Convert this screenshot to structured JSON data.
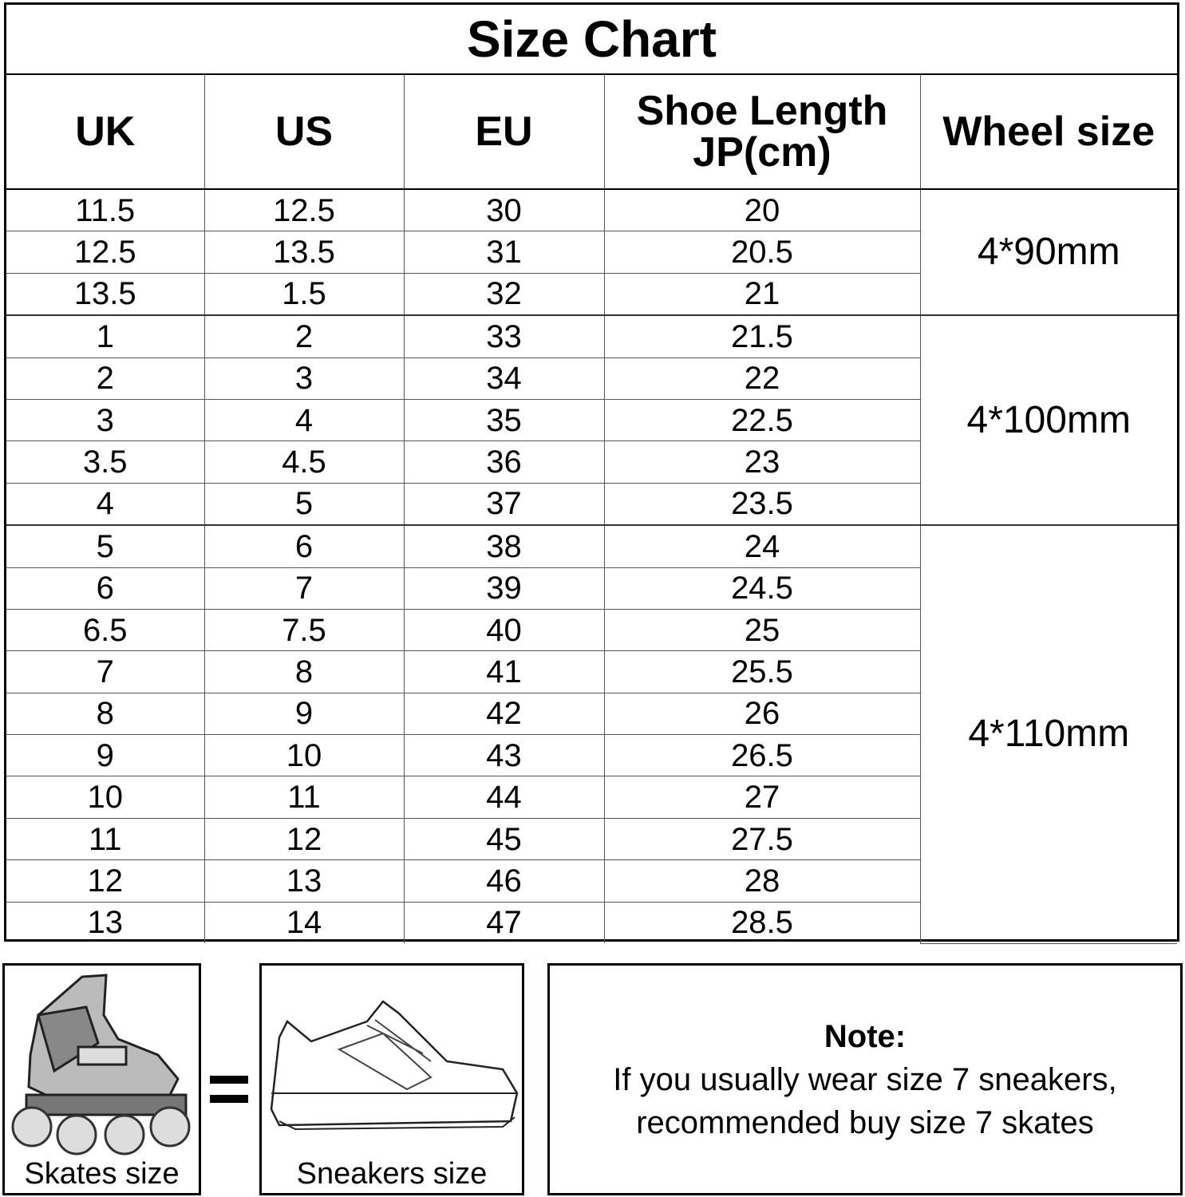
{
  "title": "Size Chart",
  "headers": [
    "UK",
    "US",
    "EU",
    "Shoe Length JP(cm)",
    "Wheel size"
  ],
  "rows": [
    [
      "11.5",
      "12.5",
      "30",
      "20"
    ],
    [
      "12.5",
      "13.5",
      "31",
      "20.5"
    ],
    [
      "13.5",
      "1.5",
      "32",
      "21"
    ],
    [
      "1",
      "2",
      "33",
      "21.5"
    ],
    [
      "2",
      "3",
      "34",
      "22"
    ],
    [
      "3",
      "4",
      "35",
      "22.5"
    ],
    [
      "3.5",
      "4.5",
      "36",
      "23"
    ],
    [
      "4",
      "5",
      "37",
      "23.5"
    ],
    [
      "5",
      "6",
      "38",
      "24"
    ],
    [
      "6",
      "7",
      "39",
      "24.5"
    ],
    [
      "6.5",
      "7.5",
      "40",
      "25"
    ],
    [
      "7",
      "8",
      "41",
      "25.5"
    ],
    [
      "8",
      "9",
      "42",
      "26"
    ],
    [
      "9",
      "10",
      "43",
      "26.5"
    ],
    [
      "10",
      "11",
      "44",
      "27"
    ],
    [
      "11",
      "12",
      "45",
      "27.5"
    ],
    [
      "12",
      "13",
      "46",
      "28"
    ],
    [
      "13",
      "14",
      "47",
      "28.5"
    ]
  ],
  "wheel_groups": [
    {
      "label": "4*90mm",
      "rows": 3
    },
    {
      "label": "4*100mm",
      "rows": 5
    },
    {
      "label": "4*110mm",
      "rows": 10
    }
  ],
  "skates_caption": "Skates size",
  "sneakers_caption": "Sneakers size",
  "note": {
    "heading": "Note:",
    "line1": "If you usually wear size 7 sneakers,",
    "line2": "recommended buy size 7 skates"
  }
}
